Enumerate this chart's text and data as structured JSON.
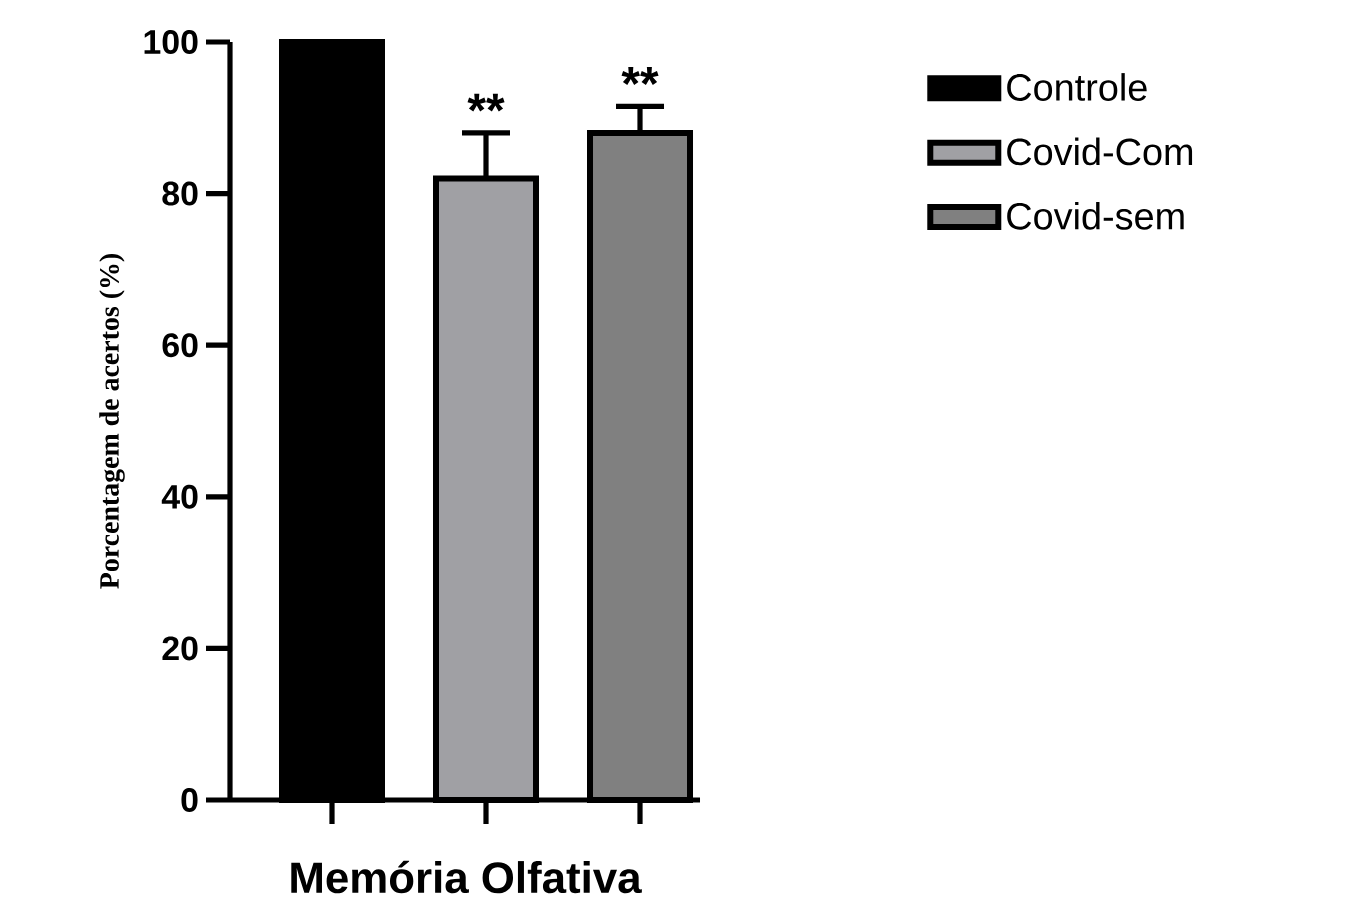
{
  "chart_data": {
    "type": "bar",
    "xlabel": "Memória Olfativa",
    "ylabel": "Porcentagem de acertos (%)",
    "categories": [
      null,
      null,
      null
    ],
    "series": [
      {
        "name": "Controle",
        "color": "#000000",
        "values": [
          100,
          null,
          null
        ]
      },
      {
        "name": "Covid-Com",
        "color": "#a0a0a4",
        "values": [
          null,
          82,
          null
        ],
        "errors": [
          null,
          [
            82,
            88
          ],
          null
        ]
      },
      {
        "name": "Covid-sem",
        "color": "#808080",
        "values": [
          null,
          null,
          88
        ],
        "errors": [
          null,
          null,
          [
            88,
            91.5
          ]
        ]
      }
    ],
    "ylim": [
      0,
      100
    ],
    "yticks": [
      0,
      20,
      40,
      60,
      80,
      100
    ],
    "legend": "right",
    "grid": false,
    "annotations": [
      {
        "text": "**",
        "y": 88
      },
      {
        "text": "**",
        "y": 91.5
      }
    ]
  }
}
